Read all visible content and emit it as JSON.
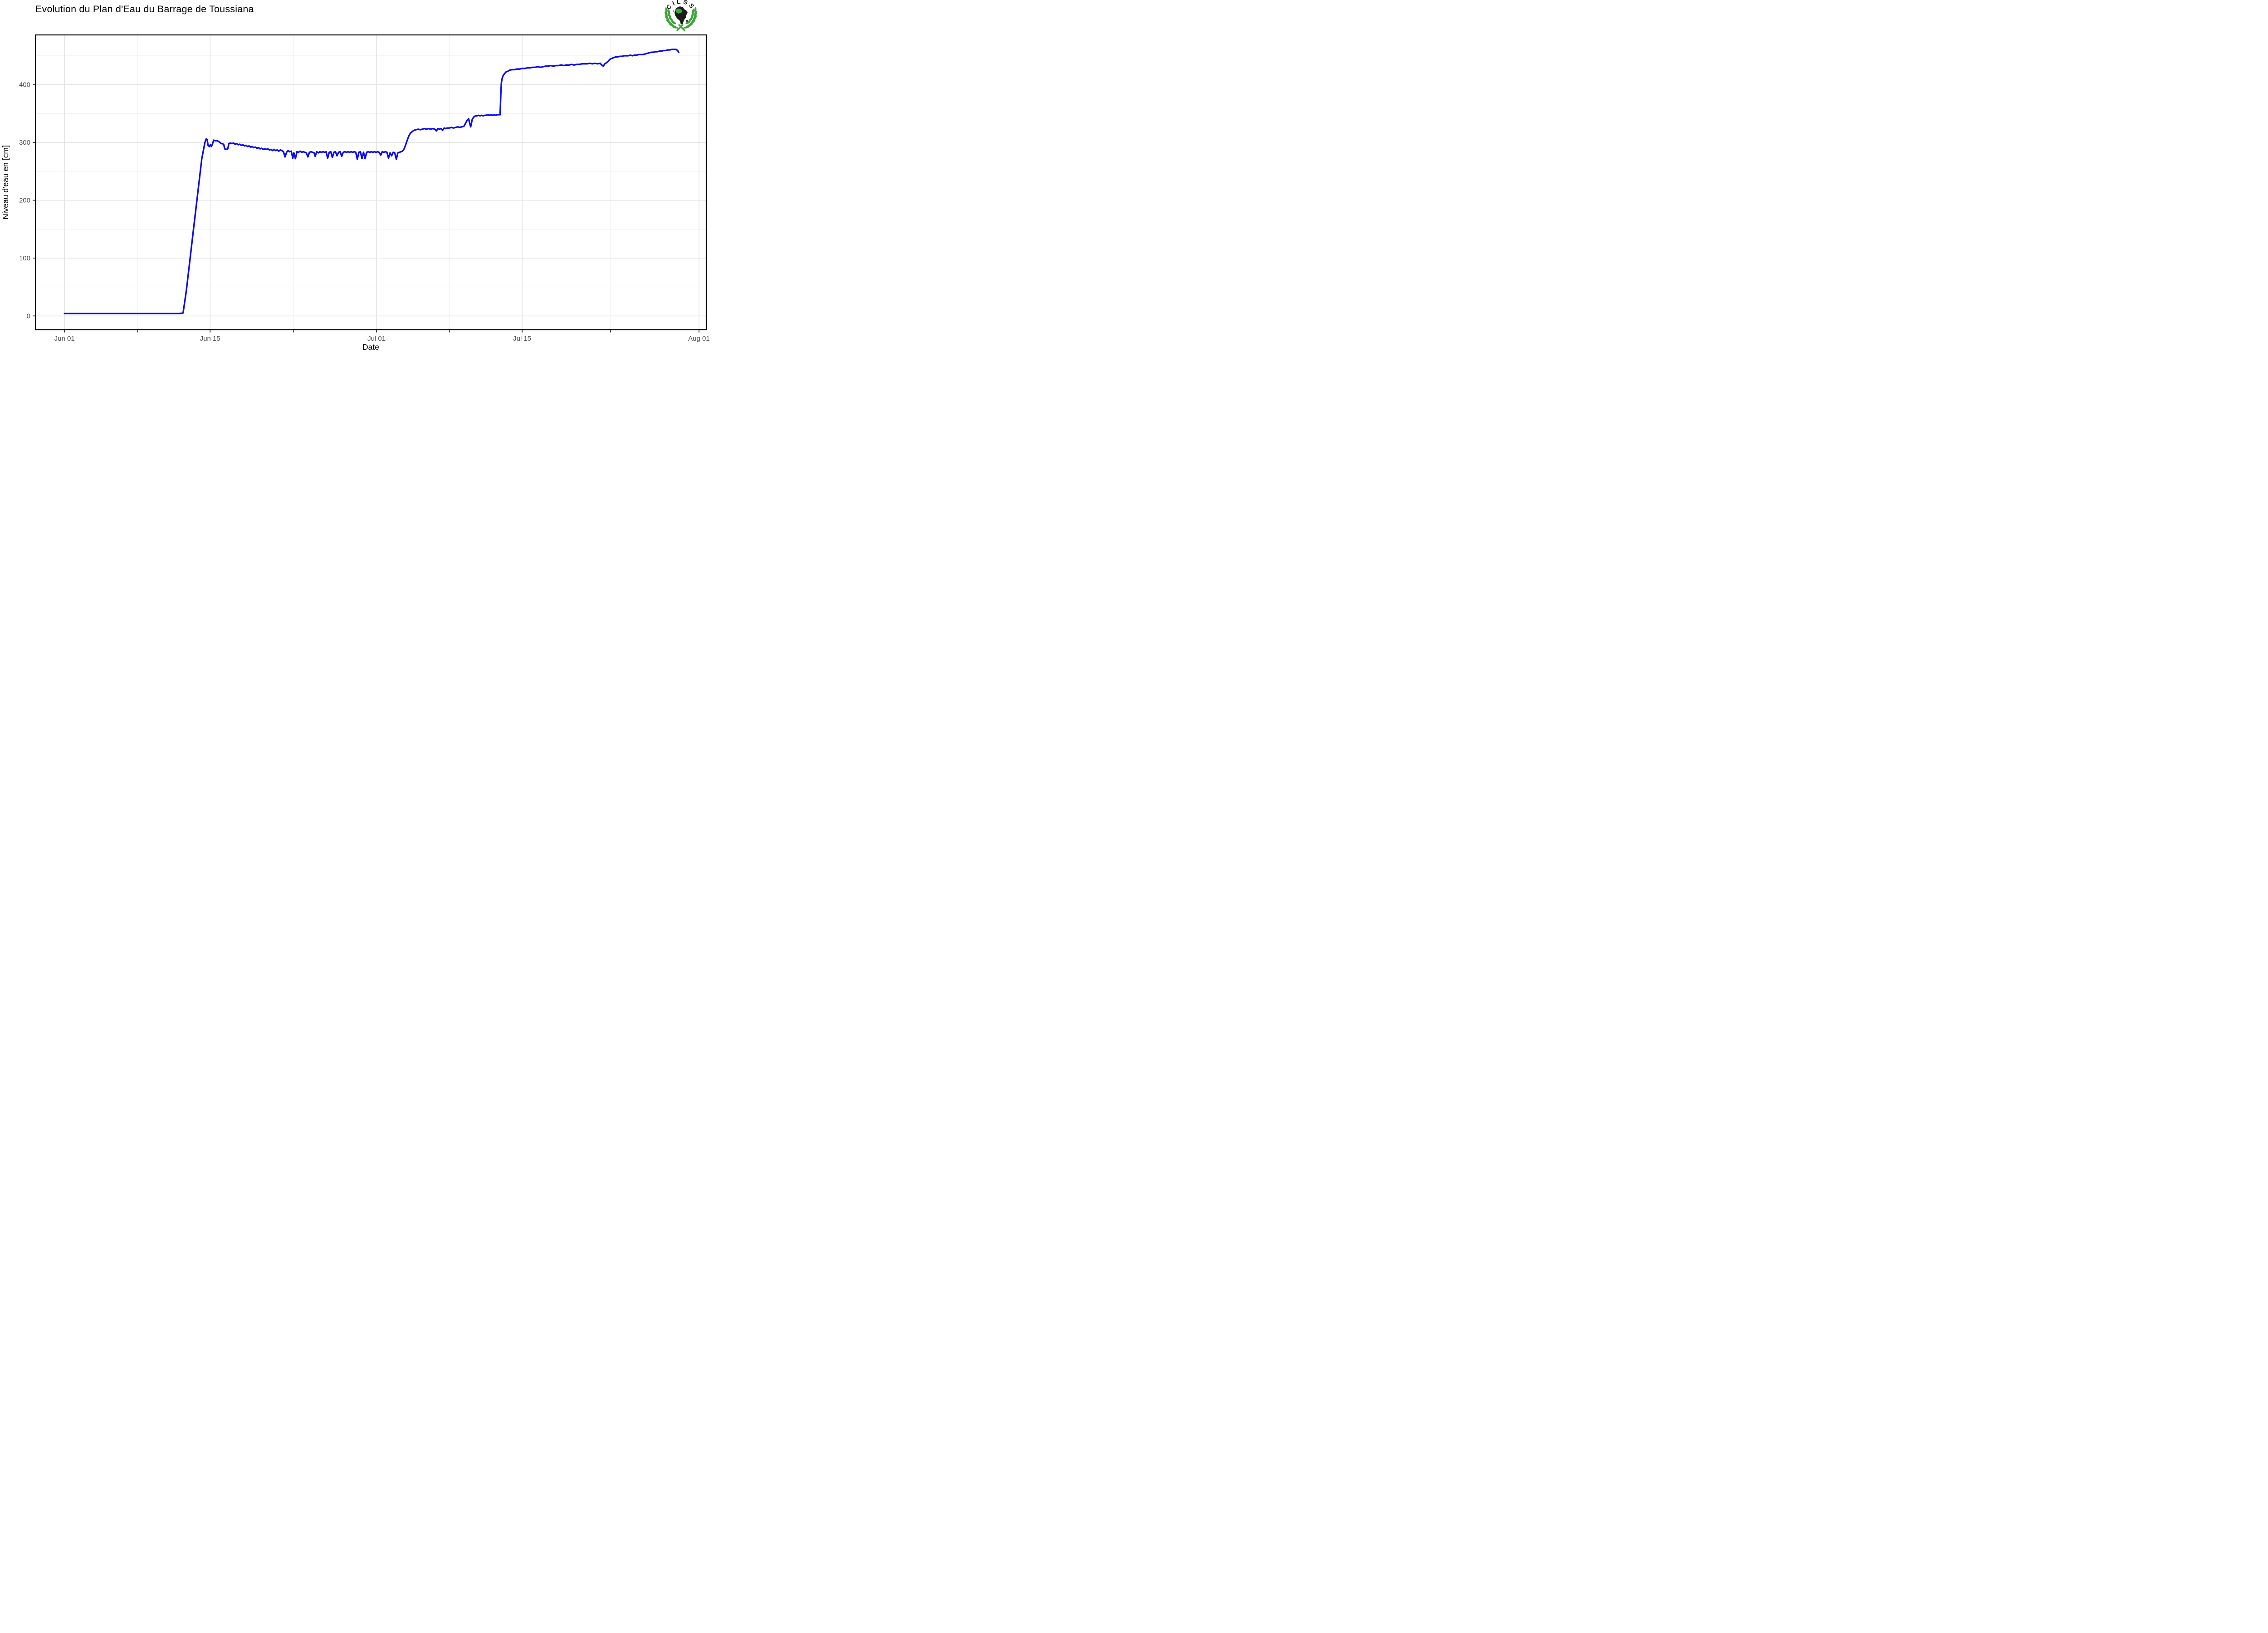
{
  "page": {
    "background": "#FFFFFF"
  },
  "header": {
    "title": "Evolution du Plan d'Eau du Barrage de Toussiana"
  },
  "logo": {
    "text": "CILSS",
    "green": "#3FA53A",
    "black": "#1B1B1B"
  },
  "chart_data": {
    "type": "line",
    "title": "Evolution du Plan d'Eau du Barrage de Toussiana",
    "xlabel": "Date",
    "ylabel": "Niveau d'eau en [cm]",
    "legend": "none",
    "grid": true,
    "x_unit": "days_since_Jun_01",
    "x_domain": [
      -2.8,
      61.7
    ],
    "ylim": [
      -24,
      486
    ],
    "x_major_ticks": [
      {
        "day": 0,
        "label": "Jun 01"
      },
      {
        "day": 14,
        "label": "Jun 15"
      },
      {
        "day": 30,
        "label": "Jul 01"
      },
      {
        "day": 44,
        "label": "Jul 15"
      },
      {
        "day": 61,
        "label": "Aug 01"
      }
    ],
    "x_minor_days": [
      7,
      22,
      37,
      52.5
    ],
    "y_major_ticks": [
      0,
      100,
      200,
      300,
      400
    ],
    "y_minor_ticks": [
      50,
      150,
      250,
      350,
      450
    ],
    "colors": {
      "line": "#0B0BEF",
      "grid_major": "#E4E4E4",
      "grid_minor": "#F1F1F1",
      "panel_border": "#000000",
      "tick": "#333333",
      "tick_label": "#4D4D4D",
      "axis_title": "#000000",
      "title": "#000000"
    },
    "series": [
      {
        "name": "Niveau d'eau",
        "points": [
          [
            0,
            4
          ],
          [
            1,
            4
          ],
          [
            2,
            4
          ],
          [
            3,
            4
          ],
          [
            4,
            4
          ],
          [
            5,
            4
          ],
          [
            6,
            4
          ],
          [
            7,
            4
          ],
          [
            8,
            4
          ],
          [
            9,
            4
          ],
          [
            10,
            4
          ],
          [
            10.5,
            4
          ],
          [
            11,
            4
          ],
          [
            11.4,
            5
          ],
          [
            11.7,
            42
          ],
          [
            12,
            88
          ],
          [
            12.3,
            134
          ],
          [
            12.6,
            180
          ],
          [
            12.9,
            226
          ],
          [
            13.2,
            272
          ],
          [
            13.5,
            300
          ],
          [
            13.62,
            306
          ],
          [
            13.72,
            305
          ],
          [
            13.8,
            295
          ],
          [
            13.92,
            293
          ],
          [
            14.02,
            296
          ],
          [
            14.12,
            293
          ],
          [
            14.22,
            297
          ],
          [
            14.34,
            304
          ],
          [
            14.5,
            303
          ],
          [
            14.65,
            303
          ],
          [
            14.8,
            302
          ],
          [
            14.95,
            300
          ],
          [
            15.05,
            298
          ],
          [
            15.2,
            298
          ],
          [
            15.32,
            296
          ],
          [
            15.4,
            289
          ],
          [
            15.55,
            288
          ],
          [
            15.7,
            289
          ],
          [
            15.8,
            298
          ],
          [
            15.95,
            299
          ],
          [
            16.1,
            298
          ],
          [
            16.25,
            299
          ],
          [
            16.4,
            297
          ],
          [
            16.55,
            298
          ],
          [
            16.7,
            296
          ],
          [
            16.85,
            297
          ],
          [
            17,
            295
          ],
          [
            17.15,
            296
          ],
          [
            17.3,
            294
          ],
          [
            17.45,
            295
          ],
          [
            17.6,
            293
          ],
          [
            17.75,
            294
          ],
          [
            17.9,
            292
          ],
          [
            18.05,
            293
          ],
          [
            18.2,
            291
          ],
          [
            18.35,
            292
          ],
          [
            18.5,
            290
          ],
          [
            18.65,
            291
          ],
          [
            18.8,
            289
          ],
          [
            18.95,
            290
          ],
          [
            19.1,
            288
          ],
          [
            19.25,
            289
          ],
          [
            19.4,
            288
          ],
          [
            19.55,
            289
          ],
          [
            19.7,
            287
          ],
          [
            19.85,
            288
          ],
          [
            20,
            286
          ],
          [
            20.15,
            288
          ],
          [
            20.3,
            286
          ],
          [
            20.45,
            287
          ],
          [
            20.6,
            285
          ],
          [
            20.75,
            287
          ],
          [
            20.9,
            286
          ],
          [
            21.05,
            284
          ],
          [
            21.2,
            275
          ],
          [
            21.35,
            283
          ],
          [
            21.5,
            286
          ],
          [
            21.65,
            284
          ],
          [
            21.8,
            285
          ],
          [
            21.95,
            273
          ],
          [
            22.05,
            282
          ],
          [
            22.2,
            272
          ],
          [
            22.35,
            284
          ],
          [
            22.5,
            283
          ],
          [
            22.65,
            285
          ],
          [
            22.8,
            283
          ],
          [
            22.95,
            284
          ],
          [
            23.1,
            283
          ],
          [
            23.25,
            282
          ],
          [
            23.4,
            275
          ],
          [
            23.55,
            283
          ],
          [
            23.7,
            284
          ],
          [
            23.85,
            283
          ],
          [
            24,
            282
          ],
          [
            24.1,
            276
          ],
          [
            24.25,
            284
          ],
          [
            24.4,
            282
          ],
          [
            24.55,
            284
          ],
          [
            24.7,
            283
          ],
          [
            24.85,
            284
          ],
          [
            25,
            283
          ],
          [
            25.15,
            284
          ],
          [
            25.3,
            273
          ],
          [
            25.45,
            283
          ],
          [
            25.6,
            284
          ],
          [
            25.75,
            274
          ],
          [
            25.9,
            283
          ],
          [
            26.05,
            284
          ],
          [
            26.2,
            277
          ],
          [
            26.35,
            283
          ],
          [
            26.5,
            284
          ],
          [
            26.65,
            276
          ],
          [
            26.8,
            283
          ],
          [
            26.95,
            284
          ],
          [
            27.1,
            283
          ],
          [
            27.25,
            284
          ],
          [
            27.4,
            283
          ],
          [
            27.55,
            284
          ],
          [
            27.7,
            283
          ],
          [
            27.85,
            284
          ],
          [
            28,
            283
          ],
          [
            28.15,
            271
          ],
          [
            28.3,
            283
          ],
          [
            28.45,
            284
          ],
          [
            28.6,
            272
          ],
          [
            28.75,
            283
          ],
          [
            28.9,
            272
          ],
          [
            29.05,
            283
          ],
          [
            29.2,
            284
          ],
          [
            29.35,
            283
          ],
          [
            29.5,
            284
          ],
          [
            29.65,
            283
          ],
          [
            29.8,
            284
          ],
          [
            29.95,
            283
          ],
          [
            30.1,
            284
          ],
          [
            30.25,
            283
          ],
          [
            30.4,
            278
          ],
          [
            30.55,
            284
          ],
          [
            30.7,
            283
          ],
          [
            30.85,
            284
          ],
          [
            31,
            283
          ],
          [
            31.15,
            273
          ],
          [
            31.3,
            282
          ],
          [
            31.45,
            277
          ],
          [
            31.6,
            283
          ],
          [
            31.75,
            282
          ],
          [
            31.9,
            271
          ],
          [
            32.05,
            282
          ],
          [
            32.2,
            283
          ],
          [
            32.35,
            284
          ],
          [
            32.5,
            285
          ],
          [
            32.65,
            289
          ],
          [
            32.8,
            296
          ],
          [
            32.95,
            304
          ],
          [
            33.1,
            311
          ],
          [
            33.25,
            316
          ],
          [
            33.45,
            319
          ],
          [
            33.6,
            321
          ],
          [
            33.8,
            322
          ],
          [
            34,
            323
          ],
          [
            34.2,
            322
          ],
          [
            34.4,
            323
          ],
          [
            34.6,
            324
          ],
          [
            34.8,
            323
          ],
          [
            35,
            324
          ],
          [
            35.2,
            323
          ],
          [
            35.4,
            324
          ],
          [
            35.6,
            323
          ],
          [
            35.75,
            320
          ],
          [
            35.9,
            324
          ],
          [
            36.05,
            323
          ],
          [
            36.2,
            324
          ],
          [
            36.35,
            321
          ],
          [
            36.5,
            325
          ],
          [
            36.65,
            324
          ],
          [
            36.8,
            325
          ],
          [
            37,
            325
          ],
          [
            37.2,
            326
          ],
          [
            37.4,
            325
          ],
          [
            37.6,
            326
          ],
          [
            37.8,
            327
          ],
          [
            38,
            326
          ],
          [
            38.2,
            327
          ],
          [
            38.4,
            328
          ],
          [
            38.55,
            333
          ],
          [
            38.7,
            338
          ],
          [
            38.85,
            341
          ],
          [
            38.95,
            334
          ],
          [
            39.05,
            327
          ],
          [
            39.2,
            340
          ],
          [
            39.35,
            344
          ],
          [
            39.5,
            346
          ],
          [
            39.65,
            346
          ],
          [
            39.8,
            347
          ],
          [
            39.95,
            346
          ],
          [
            40.1,
            347
          ],
          [
            40.25,
            346
          ],
          [
            40.4,
            347
          ],
          [
            40.55,
            347
          ],
          [
            40.7,
            348
          ],
          [
            40.85,
            347
          ],
          [
            41,
            348
          ],
          [
            41.15,
            347
          ],
          [
            41.3,
            348
          ],
          [
            41.45,
            347
          ],
          [
            41.6,
            348
          ],
          [
            41.75,
            348
          ],
          [
            41.88,
            348
          ],
          [
            41.92,
            368
          ],
          [
            41.96,
            390
          ],
          [
            42,
            403
          ],
          [
            42.08,
            411
          ],
          [
            42.18,
            416
          ],
          [
            42.3,
            419
          ],
          [
            42.45,
            422
          ],
          [
            42.6,
            423
          ],
          [
            42.8,
            425
          ],
          [
            43,
            426
          ],
          [
            43.25,
            426
          ],
          [
            43.5,
            427
          ],
          [
            43.75,
            427
          ],
          [
            44,
            428
          ],
          [
            44.25,
            428
          ],
          [
            44.5,
            429
          ],
          [
            44.75,
            429
          ],
          [
            45,
            430
          ],
          [
            45.25,
            430
          ],
          [
            45.5,
            431
          ],
          [
            45.75,
            430
          ],
          [
            46,
            431
          ],
          [
            46.25,
            432
          ],
          [
            46.5,
            432
          ],
          [
            46.75,
            433
          ],
          [
            47,
            432
          ],
          [
            47.25,
            433
          ],
          [
            47.5,
            433
          ],
          [
            47.75,
            434
          ],
          [
            48,
            433
          ],
          [
            48.25,
            434
          ],
          [
            48.5,
            434
          ],
          [
            48.75,
            435
          ],
          [
            49,
            434
          ],
          [
            49.25,
            435
          ],
          [
            49.5,
            435
          ],
          [
            49.75,
            436
          ],
          [
            50,
            436
          ],
          [
            50.25,
            436
          ],
          [
            50.5,
            437
          ],
          [
            50.75,
            436
          ],
          [
            51,
            437
          ],
          [
            51.25,
            436
          ],
          [
            51.5,
            437
          ],
          [
            51.65,
            434
          ],
          [
            51.8,
            432
          ],
          [
            51.95,
            436
          ],
          [
            52.1,
            438
          ],
          [
            52.25,
            440
          ],
          [
            52.4,
            443
          ],
          [
            52.55,
            445
          ],
          [
            52.7,
            446
          ],
          [
            52.85,
            447
          ],
          [
            53,
            448
          ],
          [
            53.2,
            448
          ],
          [
            53.4,
            449
          ],
          [
            53.6,
            449
          ],
          [
            53.8,
            450
          ],
          [
            54,
            450
          ],
          [
            54.2,
            450
          ],
          [
            54.4,
            451
          ],
          [
            54.6,
            450
          ],
          [
            54.8,
            451
          ],
          [
            55,
            451
          ],
          [
            55.2,
            452
          ],
          [
            55.4,
            452
          ],
          [
            55.6,
            452
          ],
          [
            55.8,
            453
          ],
          [
            56,
            454
          ],
          [
            56.2,
            455
          ],
          [
            56.4,
            456
          ],
          [
            56.6,
            456
          ],
          [
            56.8,
            457
          ],
          [
            57,
            457
          ],
          [
            57.2,
            458
          ],
          [
            57.4,
            458
          ],
          [
            57.6,
            459
          ],
          [
            57.8,
            459
          ],
          [
            58,
            460
          ],
          [
            58.2,
            460
          ],
          [
            58.4,
            461
          ],
          [
            58.6,
            461
          ],
          [
            58.8,
            461
          ],
          [
            58.95,
            459
          ],
          [
            59.05,
            456
          ]
        ]
      }
    ]
  }
}
